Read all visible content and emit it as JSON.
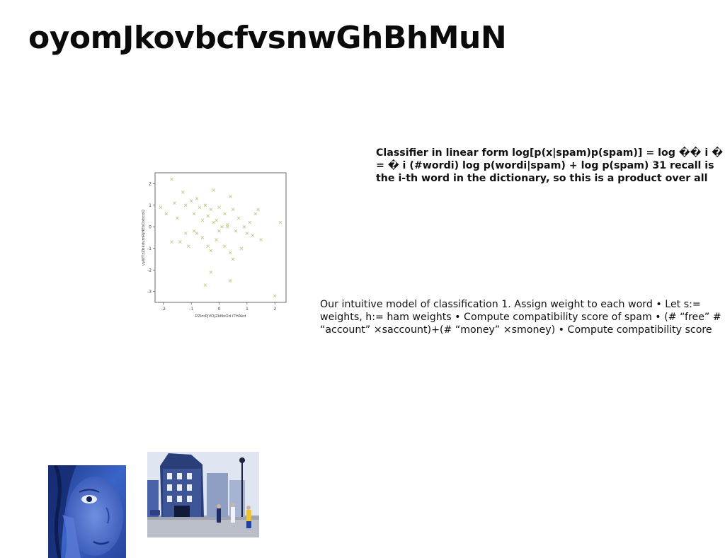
{
  "slide": {
    "title": "oyomJkovbcfvsnwGhBhMuN",
    "bold_text": "Classifier in linear form log[p(x|spam)p(spam)] = log �� i � = � i (#wordi) log p(wordi|spam) + log p(spam) 31 recall is the i-th word in the dictionary, so this is a product over all",
    "plain_text": "Our intuitive model of classification 1. Assign weight to each word • Let s:= weights, h:= ham weights • Compute compatibility score of spam • (# “free” # “account” ×saccount)+(# “money” ×smoney) • Compute compatibility score"
  },
  "chart_data": {
    "type": "scatter",
    "xlabel": "PZlmPjVOjZkNxOd iTHAkd",
    "ylabel": "vyWTzZbkdumRjHEbDxbcoQ",
    "xlim": [
      -2.3,
      2.4
    ],
    "ylim": [
      -3.5,
      2.5
    ],
    "xticks": [
      "-2",
      "-1",
      "0",
      "1",
      "2"
    ],
    "yticks": [
      "2",
      "1",
      "0",
      "-1",
      "-2",
      "-3"
    ],
    "marker": "x",
    "color": "#c9c48a",
    "grid": false,
    "points": [
      [
        -1.7,
        2.2
      ],
      [
        -2.1,
        0.9
      ],
      [
        -1.9,
        0.6
      ],
      [
        -1.6,
        1.1
      ],
      [
        -1.5,
        0.4
      ],
      [
        -1.3,
        1.6
      ],
      [
        -1.2,
        1.0
      ],
      [
        -1.0,
        1.2
      ],
      [
        -0.9,
        0.6
      ],
      [
        -0.8,
        1.3
      ],
      [
        -0.7,
        0.9
      ],
      [
        -0.6,
        0.3
      ],
      [
        -0.5,
        1.0
      ],
      [
        -0.4,
        0.5
      ],
      [
        -0.3,
        0.8
      ],
      [
        -0.2,
        1.7
      ],
      [
        -0.1,
        0.3
      ],
      [
        0.0,
        0.9
      ],
      [
        0.1,
        0.0
      ],
      [
        0.2,
        0.6
      ],
      [
        0.3,
        0.1
      ],
      [
        0.4,
        1.4
      ],
      [
        0.5,
        0.8
      ],
      [
        0.6,
        -0.2
      ],
      [
        0.7,
        0.4
      ],
      [
        0.9,
        0.0
      ],
      [
        1.0,
        -0.3
      ],
      [
        1.1,
        0.2
      ],
      [
        1.3,
        0.6
      ],
      [
        1.4,
        0.8
      ],
      [
        1.2,
        -0.4
      ],
      [
        1.5,
        -0.6
      ],
      [
        -1.7,
        -0.7
      ],
      [
        -1.4,
        -0.7
      ],
      [
        -1.2,
        -0.3
      ],
      [
        -0.9,
        -0.2
      ],
      [
        -0.6,
        -0.5
      ],
      [
        -0.4,
        -0.9
      ],
      [
        -0.3,
        -1.1
      ],
      [
        -0.1,
        -0.6
      ],
      [
        0.0,
        -0.2
      ],
      [
        0.2,
        -0.9
      ],
      [
        0.4,
        -1.2
      ],
      [
        0.5,
        -1.5
      ],
      [
        -0.3,
        -2.1
      ],
      [
        0.4,
        -2.5
      ],
      [
        -0.5,
        -2.7
      ],
      [
        2.0,
        -3.2
      ],
      [
        2.2,
        0.2
      ],
      [
        -1.1,
        -0.9
      ],
      [
        0.8,
        -1.0
      ],
      [
        -0.8,
        -0.3
      ],
      [
        0.3,
        0.0
      ],
      [
        -0.2,
        0.2
      ]
    ]
  },
  "images": {
    "portrait": {
      "subject": "blue-tinted close-up face portrait",
      "tint": "#3a5fc8"
    },
    "street": {
      "subject": "street scene with historic building and pedestrians",
      "sky": "#dfe6f2"
    }
  }
}
